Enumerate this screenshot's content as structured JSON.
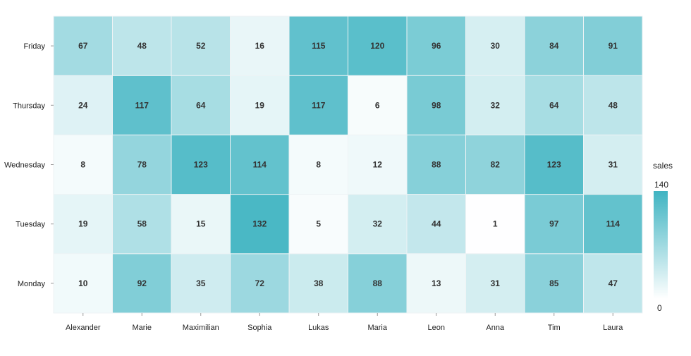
{
  "chart_data": {
    "type": "heatmap",
    "x_categories": [
      "Alexander",
      "Marie",
      "Maximilian",
      "Sophia",
      "Lukas",
      "Maria",
      "Leon",
      "Anna",
      "Tim",
      "Laura"
    ],
    "y_categories": [
      "Monday",
      "Tuesday",
      "Wednesday",
      "Thursday",
      "Friday"
    ],
    "values": [
      [
        10,
        92,
        35,
        72,
        38,
        88,
        13,
        31,
        85,
        47
      ],
      [
        19,
        58,
        15,
        132,
        5,
        32,
        44,
        1,
        97,
        114
      ],
      [
        8,
        78,
        123,
        114,
        8,
        12,
        88,
        82,
        123,
        31
      ],
      [
        24,
        117,
        64,
        19,
        117,
        6,
        98,
        32,
        64,
        48
      ],
      [
        67,
        48,
        52,
        16,
        115,
        120,
        96,
        30,
        84,
        91
      ]
    ],
    "value_range": [
      0,
      140
    ],
    "color_min": "#ffffff",
    "color_max": "#3fb4c2",
    "legend": {
      "title": "sales",
      "max_label": "140",
      "min_label": "0",
      "position": "right"
    }
  }
}
